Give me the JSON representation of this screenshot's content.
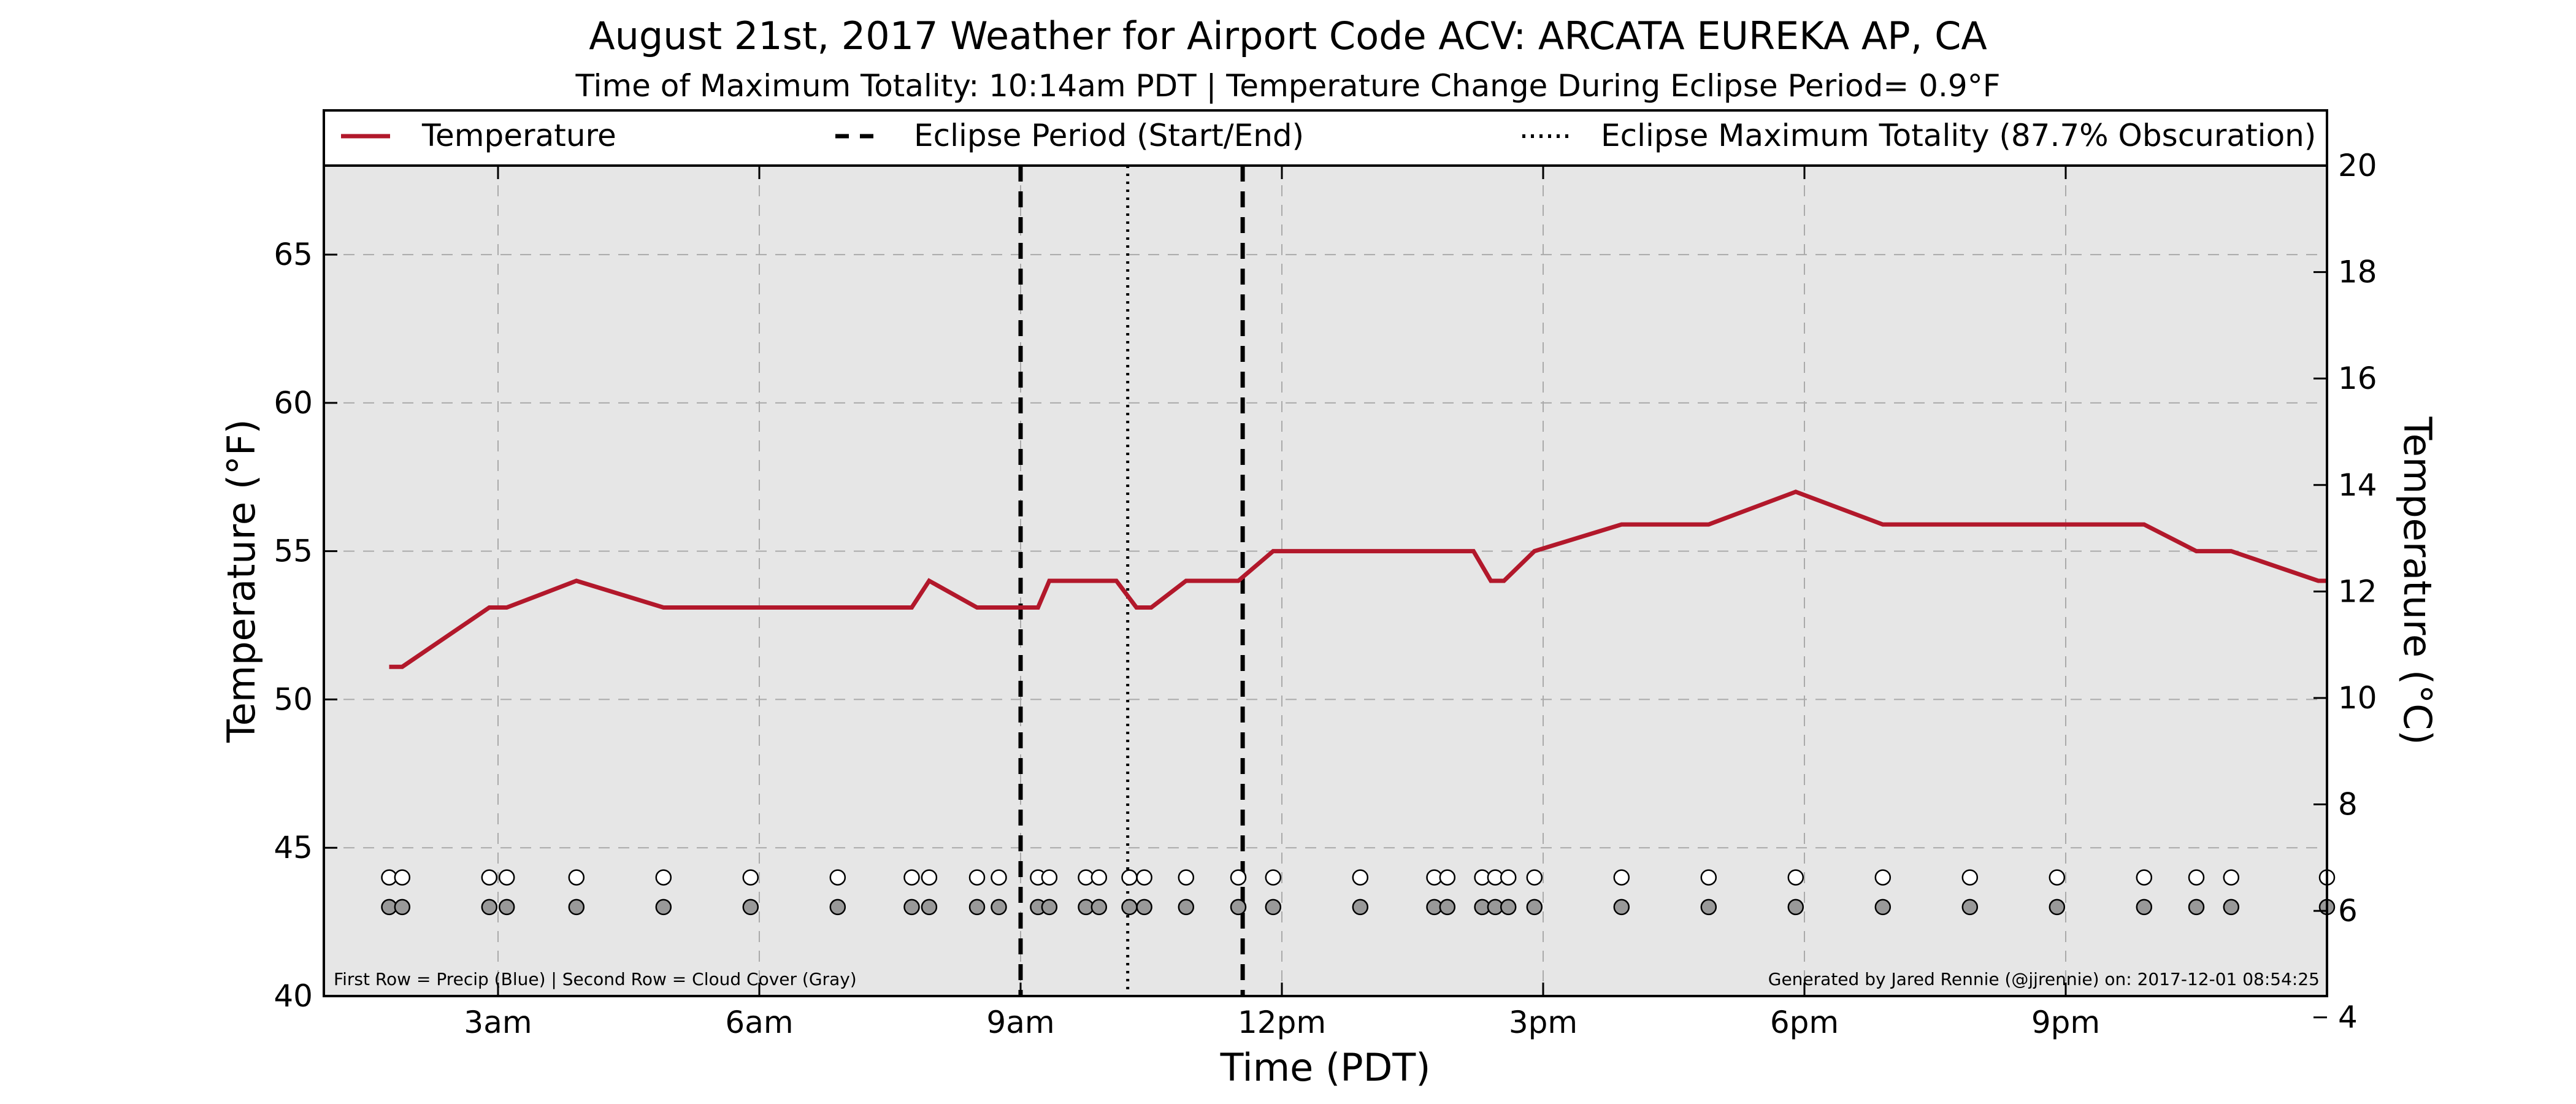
{
  "chart_data": {
    "type": "line",
    "title": "August 21st, 2017 Weather for Airport Code ACV: ARCATA EUREKA AP, CA",
    "subtitle": "Time of Maximum Totality: 10:14am PDT | Temperature Change During Eclipse Period= 0.9°F",
    "xlabel": "Time (PDT)",
    "ylabel": "Temperature (°F)",
    "ylabel_right": "Temperature (°C)",
    "xlim": [
      1.0,
      24.0
    ],
    "ylim": [
      40,
      68
    ],
    "ylim_right": [
      4.4,
      20.0
    ],
    "x_ticks": [
      {
        "x": 3,
        "label": "3am"
      },
      {
        "x": 6,
        "label": "6am"
      },
      {
        "x": 9,
        "label": "9am"
      },
      {
        "x": 12,
        "label": "12pm"
      },
      {
        "x": 15,
        "label": "3pm"
      },
      {
        "x": 18,
        "label": "6pm"
      },
      {
        "x": 21,
        "label": "9pm"
      }
    ],
    "y_ticks": [
      {
        "y": 40,
        "label": "40"
      },
      {
        "y": 45,
        "label": "45"
      },
      {
        "y": 50,
        "label": "50"
      },
      {
        "y": 55,
        "label": "55"
      },
      {
        "y": 60,
        "label": "60"
      },
      {
        "y": 65,
        "label": "65"
      }
    ],
    "y_ticks_right": [
      {
        "y": 4,
        "label": "4"
      },
      {
        "y": 6,
        "label": "6"
      },
      {
        "y": 8,
        "label": "8"
      },
      {
        "y": 10,
        "label": "10"
      },
      {
        "y": 12,
        "label": "12"
      },
      {
        "y": 14,
        "label": "14"
      },
      {
        "y": 16,
        "label": "16"
      },
      {
        "y": 18,
        "label": "18"
      },
      {
        "y": 20,
        "label": "20"
      }
    ],
    "grid": true,
    "legend_position": "top",
    "legend": [
      {
        "label": "Temperature",
        "style": "solid",
        "color": "#b2182b"
      },
      {
        "label": "Eclipse Period (Start/End)",
        "style": "dashed",
        "color": "#000000"
      },
      {
        "label": "Eclipse Maximum Totality (87.7% Obscuration)",
        "style": "dotted",
        "color": "#000000"
      }
    ],
    "series": [
      {
        "name": "Temperature",
        "color": "#b2182b",
        "x": [
          1.75,
          1.9,
          2.9,
          3.1,
          3.9,
          4.9,
          5.9,
          6.9,
          7.75,
          7.95,
          8.5,
          8.75,
          9.2,
          9.33,
          10.1,
          10.33,
          10.5,
          10.9,
          11.5,
          11.9,
          12.9,
          13.75,
          13.9,
          14.2,
          14.4,
          14.55,
          14.9,
          15.9,
          16.9,
          17.9,
          18.9,
          19.9,
          20.9,
          21.9,
          22.5,
          22.9,
          23.9,
          24.0
        ],
        "y": [
          51.1,
          51.1,
          53.1,
          53.1,
          54.0,
          53.1,
          53.1,
          53.1,
          53.1,
          54.0,
          53.1,
          53.1,
          53.1,
          54.0,
          54.0,
          53.1,
          53.1,
          54.0,
          54.0,
          55.0,
          55.0,
          55.0,
          55.0,
          55.0,
          54.0,
          54.0,
          55.0,
          55.9,
          55.9,
          57.0,
          55.9,
          55.9,
          55.9,
          55.9,
          55.0,
          55.0,
          54.0,
          54.0
        ]
      }
    ],
    "eclipse_start_x": 9.0,
    "eclipse_end_x": 11.55,
    "eclipse_max_x": 10.23,
    "precip_row": {
      "name": "Precip",
      "color": "#ffffff",
      "y": 44.0,
      "x": [
        1.75,
        1.9,
        2.9,
        3.1,
        3.9,
        4.9,
        5.9,
        6.9,
        7.75,
        7.95,
        8.5,
        8.75,
        9.2,
        9.33,
        9.75,
        9.9,
        10.25,
        10.42,
        10.9,
        11.5,
        11.9,
        12.9,
        13.75,
        13.9,
        14.3,
        14.45,
        14.6,
        14.9,
        15.9,
        16.9,
        17.9,
        18.9,
        19.9,
        20.9,
        21.9,
        22.5,
        22.9,
        24.0
      ]
    },
    "cloud_row": {
      "name": "Cloud Cover",
      "color": "#999999",
      "y": 43.0,
      "x": [
        1.75,
        1.9,
        2.9,
        3.1,
        3.9,
        4.9,
        5.9,
        6.9,
        7.75,
        7.95,
        8.5,
        8.75,
        9.2,
        9.33,
        9.75,
        9.9,
        10.25,
        10.42,
        10.9,
        11.5,
        11.9,
        12.9,
        13.75,
        13.9,
        14.3,
        14.45,
        14.6,
        14.9,
        15.9,
        16.9,
        17.9,
        18.9,
        19.9,
        20.9,
        21.9,
        22.5,
        22.9,
        24.0
      ]
    },
    "annotations": {
      "bottom_left": "First Row = Precip (Blue) | Second Row = Cloud Cover (Gray)",
      "bottom_right": "Generated by Jared Rennie (@jjrennie) on: 2017-12-01 08:54:25"
    }
  }
}
